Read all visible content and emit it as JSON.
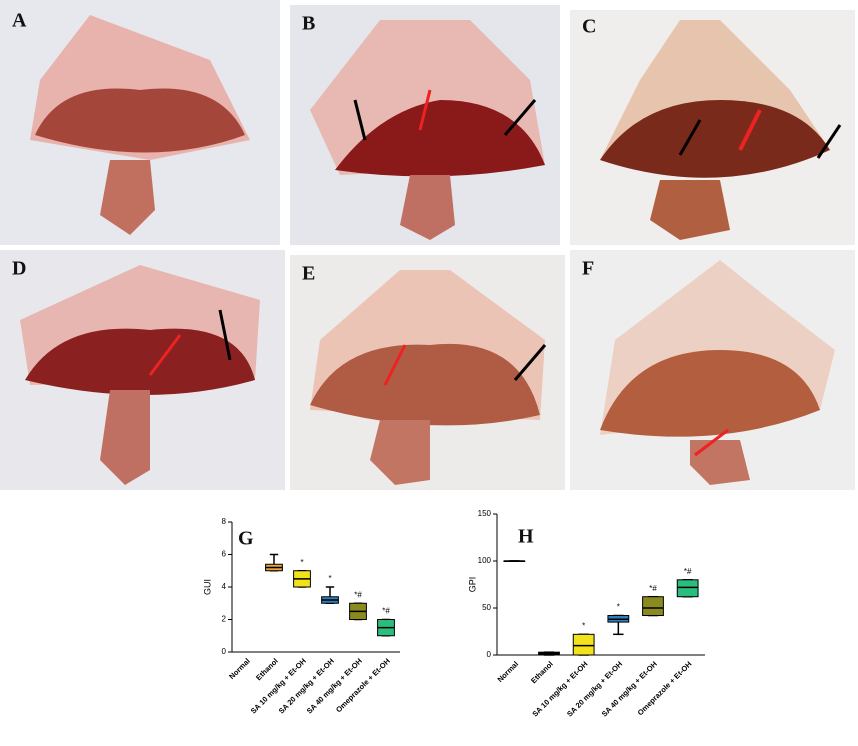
{
  "panels": [
    "A",
    "B",
    "C",
    "D",
    "E",
    "F"
  ],
  "chart_data": [
    {
      "type": "box",
      "label": "G",
      "y_label": "GUI",
      "categories": [
        "Normal",
        "Ethanol",
        "SA 10 mg/kg + Et-OH",
        "SA 20 mg/kg + Et-OH",
        "SA 40 mg/kg + Et-OH",
        "Omeprazole + Et-OH"
      ],
      "min": [
        null,
        5,
        4,
        3,
        2,
        1
      ],
      "q1": [
        null,
        5,
        4,
        3,
        2,
        1
      ],
      "median": [
        null,
        5.2,
        4.5,
        3.2,
        2.5,
        1.5
      ],
      "q3": [
        null,
        5.4,
        5,
        3.4,
        3,
        2
      ],
      "max": [
        null,
        6,
        5,
        4,
        3,
        2
      ],
      "colors": [
        "#000000",
        "#e8a33c",
        "#f2e21c",
        "#2f7fc0",
        "#8a8a1e",
        "#2bbd7e"
      ],
      "annotations": [
        null,
        null,
        "*",
        "*",
        "*#",
        "*#"
      ],
      "ylim": [
        0,
        8
      ],
      "yticks": [
        0,
        2,
        4,
        6,
        8
      ]
    },
    {
      "type": "box",
      "label": "H",
      "y_label": "GPI",
      "categories": [
        "Normal",
        "Ethanol",
        "SA 10 mg/kg + Et-OH",
        "SA 20 mg/kg + Et-OH",
        "SA 40 mg/kg + Et-OH",
        "Omeprazole + Et-OH"
      ],
      "min": [
        100,
        0,
        0,
        22,
        42,
        62
      ],
      "q1": [
        100,
        0,
        0,
        35,
        42,
        62
      ],
      "median": [
        100,
        1,
        10,
        38,
        50,
        72
      ],
      "q3": [
        100,
        3,
        22,
        42,
        62,
        80
      ],
      "max": [
        100,
        3,
        22,
        42,
        62,
        80
      ],
      "colors": [
        "#000000",
        "#000000",
        "#f2e21c",
        "#2f7fc0",
        "#8a8a1e",
        "#2bbd7e"
      ],
      "annotations": [
        null,
        null,
        "*",
        "*",
        "*#",
        "*#"
      ],
      "ylim": [
        0,
        150
      ],
      "yticks": [
        0,
        50,
        100,
        150
      ]
    }
  ]
}
